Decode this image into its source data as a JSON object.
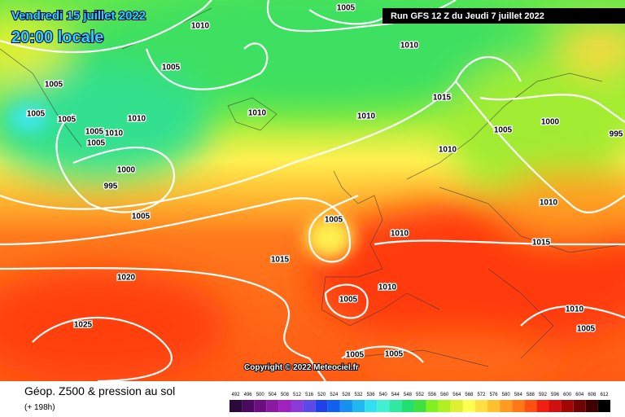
{
  "header": {
    "date": "Vendredi 15 juillet 2022",
    "time": "20:00 locale",
    "run": "Run GFS 12 Z du Jeudi 7 juillet 2022"
  },
  "isobar_labels": [
    1005,
    1010,
    1005,
    1010,
    1005,
    1005,
    1005,
    1005,
    1010,
    1005,
    1010,
    1010,
    1010,
    1015,
    1000,
    1005,
    995,
    1010,
    1000,
    995,
    1005,
    1005,
    1010,
    1010,
    1015,
    1015,
    1020,
    1010,
    1005,
    1010,
    1025,
    1005,
    1005,
    1005
  ],
  "copyright": "Copyright © 2022 Meteociel.fr",
  "footer": {
    "title": "Géop. Z500 & pression au sol",
    "lead": "(+ 198h)"
  },
  "colorbar": {
    "labels": [
      492,
      496,
      500,
      504,
      508,
      512,
      516,
      520,
      524,
      528,
      532,
      536,
      540,
      544,
      548,
      552,
      556,
      560,
      564,
      568,
      572,
      576,
      580,
      584,
      588,
      592,
      596,
      600,
      604,
      608,
      612
    ],
    "colors": [
      "#2a0a3a",
      "#4b0a5e",
      "#6a0f80",
      "#8a1aa0",
      "#a020c0",
      "#8a3ad8",
      "#5a4ae8",
      "#2040e8",
      "#1060f0",
      "#1890f0",
      "#20b8f0",
      "#30e0f0",
      "#40f0d0",
      "#30e8a0",
      "#20e070",
      "#40e040",
      "#80f020",
      "#b0f020",
      "#e0f030",
      "#ffff50",
      "#ffe040",
      "#ffc030",
      "#ff9c20",
      "#ff7818",
      "#ff5010",
      "#f02010",
      "#d01010",
      "#a00808",
      "#700404",
      "#400000",
      "#000000"
    ]
  }
}
